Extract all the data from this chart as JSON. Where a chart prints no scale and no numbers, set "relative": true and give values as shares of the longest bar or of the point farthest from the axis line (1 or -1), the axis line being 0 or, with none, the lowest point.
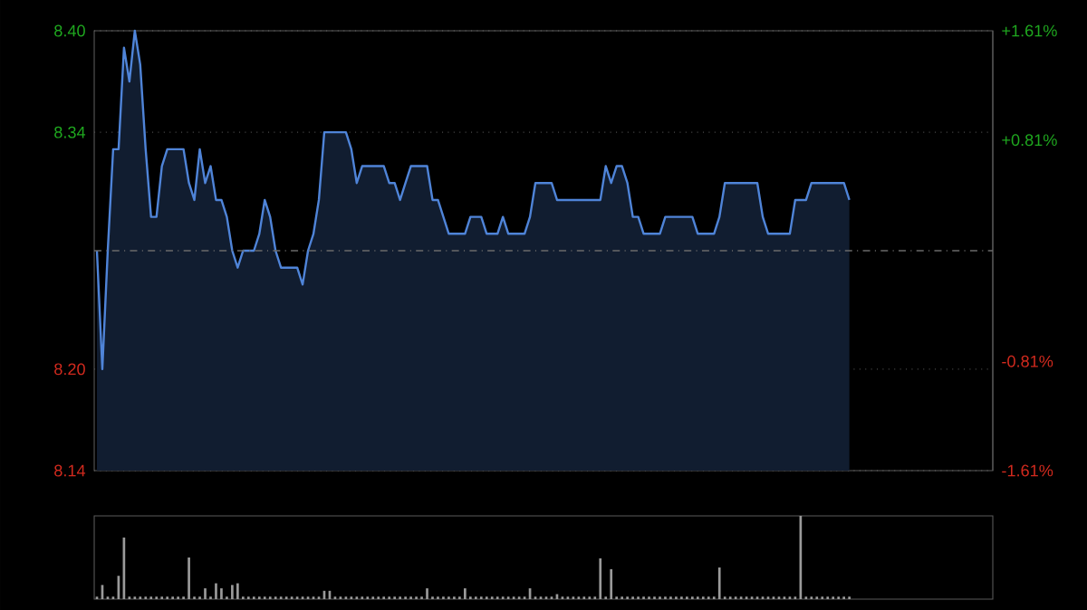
{
  "chart_data": [
    {
      "type": "area",
      "grid": "y",
      "tick_labels": "y",
      "categories": [
        null,
        null,
        null,
        null,
        null,
        null,
        null,
        null,
        null,
        null,
        null,
        null,
        null,
        null,
        null,
        null,
        null,
        null,
        null,
        null,
        null,
        null,
        null,
        null,
        null,
        null,
        null,
        null,
        null,
        null,
        null,
        null,
        null,
        null,
        null,
        null,
        null,
        null,
        null,
        null,
        null,
        null,
        null,
        null,
        null,
        null,
        null,
        null,
        null,
        null,
        null,
        null,
        null,
        null,
        null,
        null,
        null,
        null,
        null,
        null,
        null,
        null,
        null,
        null,
        null,
        null,
        null,
        null,
        null,
        null,
        null,
        null,
        null,
        null,
        null,
        null,
        null,
        null,
        null,
        null,
        null,
        null,
        null,
        null,
        null,
        null,
        null,
        null,
        null,
        null,
        null,
        null,
        null,
        null,
        null,
        null,
        null,
        null,
        null,
        null,
        null,
        null,
        null,
        null,
        null,
        null,
        null,
        null,
        null,
        null,
        null,
        null,
        null,
        null,
        null,
        null,
        null,
        null,
        null,
        null,
        null,
        null,
        null,
        null,
        null,
        null,
        null,
        null,
        null,
        null,
        null,
        null,
        null,
        null,
        null,
        null,
        null,
        null,
        null,
        null,
        null,
        null,
        null,
        null,
        null,
        null,
        null,
        null,
        null,
        null,
        null,
        null,
        null,
        null,
        null,
        null,
        null,
        null,
        null,
        null,
        null,
        null,
        null,
        null,
        null,
        null
      ],
      "ylim": [
        8.14,
        8.4
      ],
      "yticks": [
        {
          "value": 8.14,
          "label": "8.14"
        },
        {
          "value": 8.2,
          "label": "8.20"
        },
        {
          "value": 8.34,
          "label": "8.34"
        },
        {
          "value": 8.4,
          "label": "8.40"
        }
      ],
      "y2lim": [
        -1.61,
        1.61
      ],
      "y2ticks": [
        {
          "value": -1.61,
          "label": "-1.61%"
        },
        {
          "value": -0.81,
          "label": "-0.81%"
        },
        {
          "value": 0.81,
          "label": "+0.81%"
        },
        {
          "value": 1.61,
          "label": "+1.61%"
        }
      ],
      "ref_lines": [
        {
          "axis": "y2",
          "value": 0,
          "line_style": "dashed",
          "color": "#6a6a6a"
        }
      ],
      "series": [
        {
          "color": "#4f84d8",
          "values": [
            8.27,
            8.2,
            8.27,
            8.33,
            8.33,
            8.39,
            8.37,
            8.4,
            8.38,
            8.33,
            8.29,
            8.29,
            8.32,
            8.33,
            8.33,
            8.33,
            8.33,
            8.31,
            8.3,
            8.33,
            8.31,
            8.32,
            8.3,
            8.3,
            8.29,
            8.27,
            8.26,
            8.27,
            8.27,
            8.27,
            8.28,
            8.3,
            8.29,
            8.27,
            8.26,
            8.26,
            8.26,
            8.26,
            8.25,
            8.27,
            8.28,
            8.3,
            8.34,
            8.34,
            8.34,
            8.34,
            8.34,
            8.33,
            8.31,
            8.32,
            8.32,
            8.32,
            8.32,
            8.32,
            8.31,
            8.31,
            8.3,
            8.31,
            8.32,
            8.32,
            8.32,
            8.32,
            8.3,
            8.3,
            8.29,
            8.28,
            8.28,
            8.28,
            8.28,
            8.29,
            8.29,
            8.29,
            8.28,
            8.28,
            8.28,
            8.29,
            8.28,
            8.28,
            8.28,
            8.28,
            8.29,
            8.31,
            8.31,
            8.31,
            8.31,
            8.3,
            8.3,
            8.3,
            8.3,
            8.3,
            8.3,
            8.3,
            8.3,
            8.3,
            8.32,
            8.31,
            8.32,
            8.32,
            8.31,
            8.29,
            8.29,
            8.28,
            8.28,
            8.28,
            8.28,
            8.29,
            8.29,
            8.29,
            8.29,
            8.29,
            8.29,
            8.28,
            8.28,
            8.28,
            8.28,
            8.29,
            8.31,
            8.31,
            8.31,
            8.31,
            8.31,
            8.31,
            8.31,
            8.29,
            8.28,
            8.28,
            8.28,
            8.28,
            8.28,
            8.3,
            8.3,
            8.3,
            8.31,
            8.31,
            8.31,
            8.31,
            8.31,
            8.31,
            8.31,
            8.3,
            null,
            null,
            null,
            null,
            null,
            null,
            null,
            null,
            null,
            null,
            null,
            null,
            null,
            null,
            null,
            null,
            null,
            null,
            null,
            null,
            null,
            null,
            null,
            null,
            null,
            null
          ]
        }
      ]
    },
    {
      "type": "bar",
      "relative": true,
      "tick_labels": false,
      "categories": [
        null,
        null,
        null,
        null,
        null,
        null,
        null,
        null,
        null,
        null,
        null,
        null,
        null,
        null,
        null,
        null,
        null,
        null,
        null,
        null,
        null,
        null,
        null,
        null,
        null,
        null,
        null,
        null,
        null,
        null,
        null,
        null,
        null,
        null,
        null,
        null,
        null,
        null,
        null,
        null,
        null,
        null,
        null,
        null,
        null,
        null,
        null,
        null,
        null,
        null,
        null,
        null,
        null,
        null,
        null,
        null,
        null,
        null,
        null,
        null,
        null,
        null,
        null,
        null,
        null,
        null,
        null,
        null,
        null,
        null,
        null,
        null,
        null,
        null,
        null,
        null,
        null,
        null,
        null,
        null,
        null,
        null,
        null,
        null,
        null,
        null,
        null,
        null,
        null,
        null,
        null,
        null,
        null,
        null,
        null,
        null,
        null,
        null,
        null,
        null,
        null,
        null,
        null,
        null,
        null,
        null,
        null,
        null,
        null,
        null,
        null,
        null,
        null,
        null,
        null,
        null,
        null,
        null,
        null,
        null,
        null,
        null,
        null,
        null,
        null,
        null,
        null,
        null,
        null,
        null,
        null,
        null,
        null,
        null,
        null,
        null,
        null,
        null,
        null,
        null,
        null,
        null,
        null,
        null,
        null,
        null,
        null,
        null,
        null,
        null,
        null,
        null,
        null,
        null,
        null,
        null,
        null,
        null,
        null,
        null,
        null,
        null,
        null,
        null,
        null,
        null
      ],
      "values": [
        0.03,
        0.17,
        0.03,
        0.03,
        0.28,
        0.74,
        0.03,
        0.03,
        0.03,
        0.03,
        0.03,
        0.03,
        0.03,
        0.03,
        0.03,
        0.03,
        0.03,
        0.5,
        0.03,
        0.03,
        0.13,
        0.03,
        0.19,
        0.13,
        0.03,
        0.17,
        0.19,
        0.03,
        0.03,
        0.03,
        0.03,
        0.03,
        0.03,
        0.03,
        0.03,
        0.03,
        0.03,
        0.03,
        0.03,
        0.03,
        0.03,
        0.03,
        0.1,
        0.1,
        0.03,
        0.03,
        0.03,
        0.03,
        0.03,
        0.03,
        0.03,
        0.03,
        0.03,
        0.03,
        0.03,
        0.03,
        0.03,
        0.03,
        0.03,
        0.03,
        0.03,
        0.13,
        0.03,
        0.03,
        0.03,
        0.03,
        0.03,
        0.03,
        0.13,
        0.03,
        0.03,
        0.03,
        0.03,
        0.03,
        0.03,
        0.03,
        0.03,
        0.03,
        0.03,
        0.03,
        0.13,
        0.03,
        0.03,
        0.03,
        0.03,
        0.06,
        0.03,
        0.03,
        0.03,
        0.03,
        0.03,
        0.03,
        0.03,
        0.49,
        0.03,
        0.36,
        0.03,
        0.03,
        0.03,
        0.03,
        0.03,
        0.03,
        0.03,
        0.03,
        0.03,
        0.03,
        0.03,
        0.03,
        0.03,
        0.03,
        0.03,
        0.03,
        0.03,
        0.03,
        0.03,
        0.38,
        0.03,
        0.03,
        0.03,
        0.03,
        0.03,
        0.03,
        0.03,
        0.03,
        0.03,
        0.03,
        0.03,
        0.03,
        0.03,
        0.03,
        1,
        0.03,
        0.03,
        0.03,
        0.03,
        0.03,
        0.03,
        0.03,
        0.03,
        0.03,
        null,
        null,
        null,
        null,
        null,
        null,
        null,
        null,
        null,
        null,
        null,
        null,
        null,
        null,
        null,
        null,
        null,
        null,
        null,
        null,
        null,
        null,
        null,
        null,
        null,
        null
      ],
      "color": "#9a9a9a"
    }
  ]
}
